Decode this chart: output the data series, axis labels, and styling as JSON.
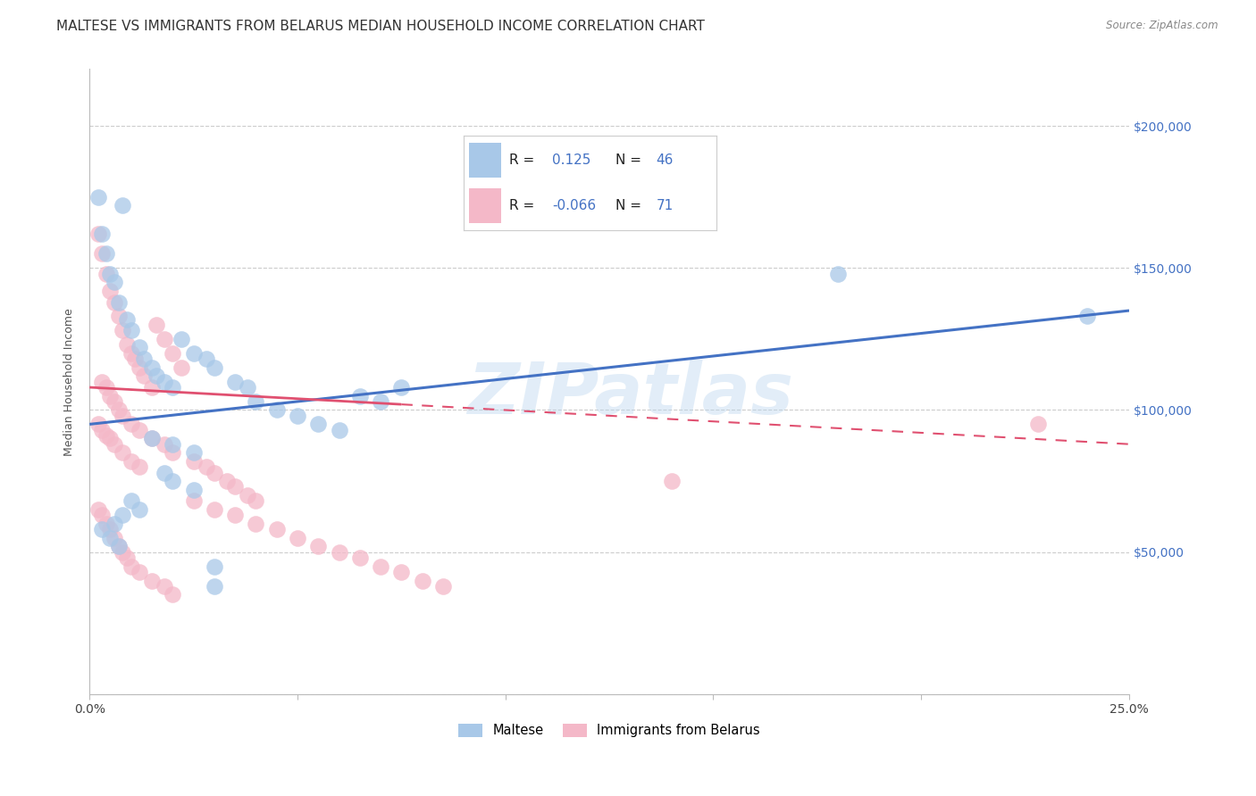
{
  "title": "MALTESE VS IMMIGRANTS FROM BELARUS MEDIAN HOUSEHOLD INCOME CORRELATION CHART",
  "source": "Source: ZipAtlas.com",
  "ylabel": "Median Household Income",
  "xlim": [
    0.0,
    0.25
  ],
  "ylim": [
    0,
    220000
  ],
  "xtick_positions": [
    0.0,
    0.05,
    0.1,
    0.15,
    0.2,
    0.25
  ],
  "xticklabels": [
    "0.0%",
    "",
    "",
    "",
    "",
    "25.0%"
  ],
  "ytick_positions": [
    0,
    50000,
    100000,
    150000,
    200000
  ],
  "right_yticklabels": [
    "",
    "$50,000",
    "$100,000",
    "$150,000",
    "$200,000"
  ],
  "blue_R": 0.125,
  "blue_N": 46,
  "pink_R": -0.066,
  "pink_N": 71,
  "blue_color": "#a8c8e8",
  "pink_color": "#f4b8c8",
  "blue_line_color": "#4472c4",
  "pink_line_color": "#e05070",
  "blue_scatter_x": [
    0.002,
    0.008,
    0.003,
    0.004,
    0.005,
    0.006,
    0.007,
    0.009,
    0.01,
    0.012,
    0.013,
    0.015,
    0.016,
    0.018,
    0.02,
    0.022,
    0.025,
    0.028,
    0.03,
    0.035,
    0.038,
    0.04,
    0.045,
    0.05,
    0.055,
    0.06,
    0.065,
    0.07,
    0.075,
    0.018,
    0.02,
    0.025,
    0.01,
    0.012,
    0.008,
    0.006,
    0.003,
    0.005,
    0.007,
    0.015,
    0.02,
    0.025,
    0.03,
    0.18,
    0.24,
    0.03
  ],
  "blue_scatter_y": [
    175000,
    172000,
    162000,
    155000,
    148000,
    145000,
    138000,
    132000,
    128000,
    122000,
    118000,
    115000,
    112000,
    110000,
    108000,
    125000,
    120000,
    118000,
    115000,
    110000,
    108000,
    103000,
    100000,
    98000,
    95000,
    93000,
    105000,
    103000,
    108000,
    78000,
    75000,
    72000,
    68000,
    65000,
    63000,
    60000,
    58000,
    55000,
    52000,
    90000,
    88000,
    85000,
    45000,
    148000,
    133000,
    38000
  ],
  "pink_scatter_x": [
    0.002,
    0.003,
    0.004,
    0.005,
    0.006,
    0.007,
    0.008,
    0.009,
    0.01,
    0.011,
    0.012,
    0.013,
    0.015,
    0.016,
    0.018,
    0.02,
    0.022,
    0.003,
    0.004,
    0.005,
    0.006,
    0.007,
    0.008,
    0.01,
    0.012,
    0.015,
    0.018,
    0.02,
    0.025,
    0.028,
    0.03,
    0.033,
    0.035,
    0.038,
    0.04,
    0.002,
    0.003,
    0.004,
    0.005,
    0.006,
    0.007,
    0.008,
    0.009,
    0.01,
    0.012,
    0.015,
    0.018,
    0.02,
    0.025,
    0.03,
    0.035,
    0.04,
    0.045,
    0.05,
    0.055,
    0.06,
    0.065,
    0.07,
    0.075,
    0.08,
    0.085,
    0.14,
    0.228,
    0.002,
    0.003,
    0.004,
    0.005,
    0.006,
    0.008,
    0.01,
    0.012
  ],
  "pink_scatter_y": [
    162000,
    155000,
    148000,
    142000,
    138000,
    133000,
    128000,
    123000,
    120000,
    118000,
    115000,
    112000,
    108000,
    130000,
    125000,
    120000,
    115000,
    110000,
    108000,
    105000,
    103000,
    100000,
    98000,
    95000,
    93000,
    90000,
    88000,
    85000,
    82000,
    80000,
    78000,
    75000,
    73000,
    70000,
    68000,
    65000,
    63000,
    60000,
    58000,
    55000,
    52000,
    50000,
    48000,
    45000,
    43000,
    40000,
    38000,
    35000,
    68000,
    65000,
    63000,
    60000,
    58000,
    55000,
    52000,
    50000,
    48000,
    45000,
    43000,
    40000,
    38000,
    75000,
    95000,
    95000,
    93000,
    91000,
    90000,
    88000,
    85000,
    82000,
    80000
  ],
  "watermark": "ZIPatlas",
  "background_color": "#ffffff",
  "grid_color": "#cccccc",
  "title_fontsize": 11,
  "axis_label_fontsize": 9,
  "tick_fontsize": 10,
  "legend_R_N_color": "#4472c4",
  "legend_text_color": "#222222"
}
